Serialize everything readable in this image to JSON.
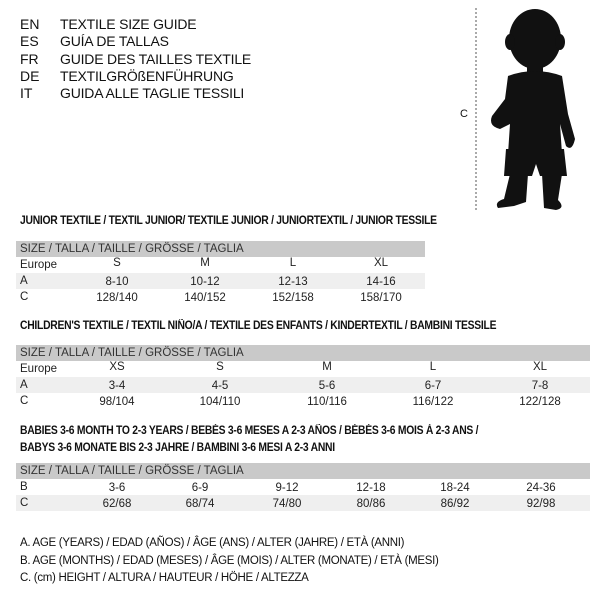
{
  "titles": [
    {
      "code": "EN",
      "text": "TEXTILE SIZE GUIDE"
    },
    {
      "code": "ES",
      "text": "GUÍA DE TALLAS"
    },
    {
      "code": "FR",
      "text": "GUIDE DES TAILLES TEXTILE"
    },
    {
      "code": "DE",
      "text": "TEXTILGRÖßENFÜHRUNG"
    },
    {
      "code": "IT",
      "text": "GUIDA ALLE TAGLIE TESSILI"
    }
  ],
  "figure": {
    "label": "C",
    "icon": "baby-silhouette-icon"
  },
  "size_header": "SIZE / TALLA / TAILLE / GRÖSSE / TAGLIA",
  "junior": {
    "title": "JUNIOR TEXTILE / TEXTIL JUNIOR/ TEXTILE JUNIOR / JUNIORTEXTIL / JUNIOR TESSILE",
    "rows": [
      {
        "label": "Europe",
        "values": [
          "S",
          "M",
          "L",
          "XL"
        ]
      },
      {
        "label": "A",
        "values": [
          "8-10",
          "10-12",
          "12-13",
          "14-16"
        ]
      },
      {
        "label": "C",
        "values": [
          "128/140",
          "140/152",
          "152/158",
          "158/170"
        ]
      }
    ]
  },
  "children": {
    "title": "CHILDREN'S TEXTILE / TEXTIL NIÑO/A / TEXTILE DES ENFANTS / KINDERTEXTIL / BAMBINI TESSILE",
    "rows": [
      {
        "label": "Europe",
        "values": [
          "XS",
          "S",
          "M",
          "L",
          "XL"
        ]
      },
      {
        "label": "A",
        "values": [
          "3-4",
          "4-5",
          "5-6",
          "6-7",
          "7-8"
        ]
      },
      {
        "label": "C",
        "values": [
          "98/104",
          "104/110",
          "110/116",
          "116/122",
          "122/128"
        ]
      }
    ]
  },
  "babies": {
    "title_line1": "BABIES 3-6 MONTH TO 2-3 YEARS / BEBÉS 3-6 MESES A 2-3 AÑOS / BÉBÉS 3-6 MOIS À 2-3 ANS /",
    "title_line2": "BABYS 3-6 MONATE BIS 2-3 JAHRE / BAMBINI 3-6 MESI A 2-3 ANNI",
    "rows": [
      {
        "label": "B",
        "values": [
          "3-6",
          "6-9",
          "9-12",
          "12-18",
          "18-24",
          "24-36"
        ]
      },
      {
        "label": "C",
        "values": [
          "62/68",
          "68/74",
          "74/80",
          "80/86",
          "86/92",
          "92/98"
        ]
      }
    ]
  },
  "legend": [
    "A. AGE (YEARS) / EDAD (AÑOS) / ÂGE (ANS) / ALTER (JAHRE) / ETÀ (ANNI)",
    "B. AGE (MONTHS) / EDAD (MESES) / ÂGE (MOIS) / ALTER (MONATE) / ETÀ (MESI)",
    "C. (cm) HEIGHT / ALTURA / HAUTEUR / HÖHE / ALTEZZA"
  ]
}
